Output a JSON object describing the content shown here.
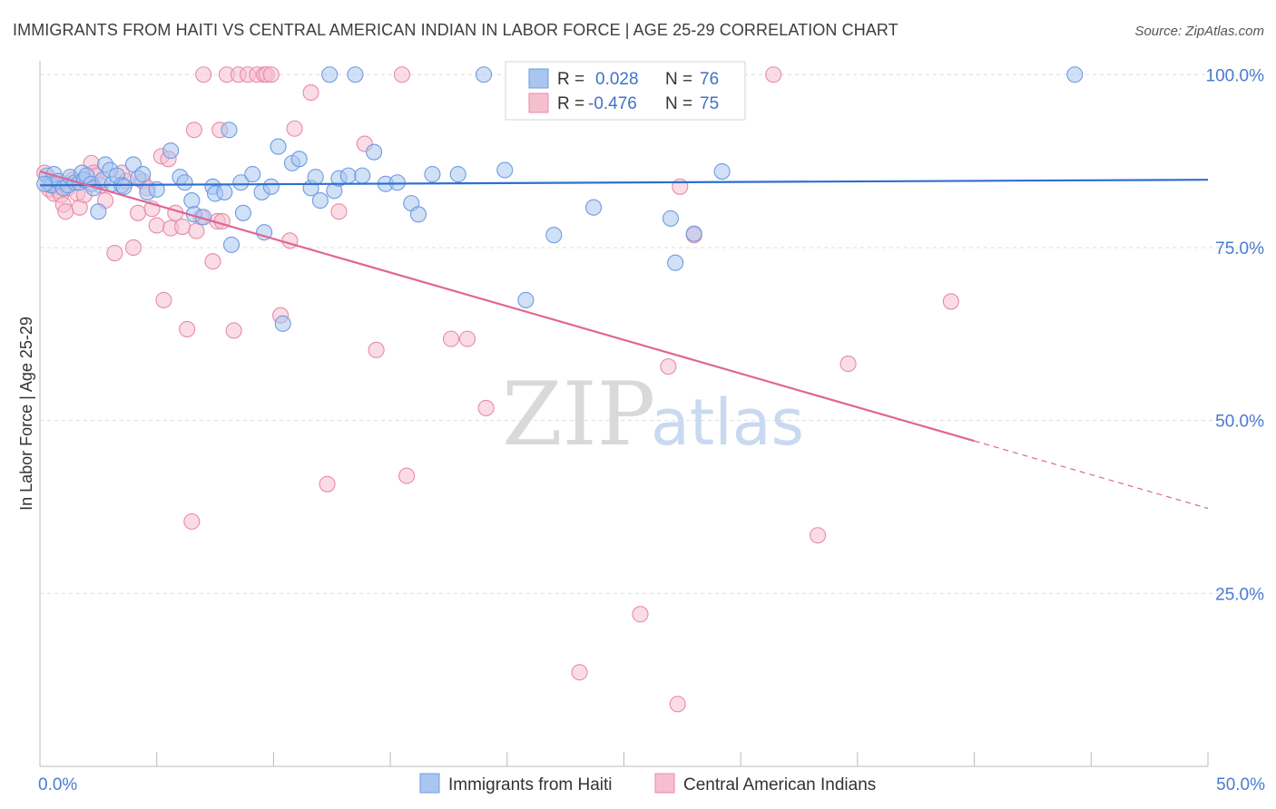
{
  "header": {
    "title": "IMMIGRANTS FROM HAITI VS CENTRAL AMERICAN INDIAN IN LABOR FORCE | AGE 25-29 CORRELATION CHART",
    "source": "Source: ZipAtlas.com"
  },
  "watermark": {
    "zip": "ZIP",
    "atlas": "atlas"
  },
  "stats": {
    "haiti": {
      "r_label": "R =",
      "r_value": "0.028",
      "n_label": "N =",
      "n_value": "76"
    },
    "cai": {
      "r_label": "R =",
      "r_value": "-0.476",
      "n_label": "N =",
      "n_value": "75"
    }
  },
  "legend": {
    "haiti": "Immigrants from Haiti",
    "cai": "Central American Indians"
  },
  "colors": {
    "haiti_fill": "#a9c6f0",
    "haiti_stroke": "#6f9be0",
    "haiti_line": "#2f6fcf",
    "cai_fill": "#f6bfd0",
    "cai_stroke": "#e98aa9",
    "cai_line": "#e06693",
    "grid": "#dddddd",
    "tick_label": "#4a7bd0"
  },
  "chart_data": {
    "type": "scatter",
    "title": "IMMIGRANTS FROM HAITI VS CENTRAL AMERICAN INDIAN IN LABOR FORCE | AGE 25-29 CORRELATION CHART",
    "xlabel": "",
    "ylabel": "In Labor Force | Age 25-29",
    "xlim": [
      0,
      50
    ],
    "ylim": [
      0,
      102
    ],
    "x_tick_labels": [
      "0.0%",
      "50.0%"
    ],
    "y_ticks": [
      25,
      50,
      75,
      100
    ],
    "y_tick_labels": [
      "25.0%",
      "50.0%",
      "75.0%",
      "100.0%"
    ],
    "grid": true,
    "legend_position": "bottom-center",
    "series": [
      {
        "name": "Immigrants from Haiti",
        "R": 0.028,
        "N": 76,
        "trend": {
          "x": [
            0,
            50
          ],
          "y": [
            84.0,
            84.8
          ],
          "dashed_from": null
        },
        "points": [
          [
            0.3,
            85.4
          ],
          [
            0.4,
            84.2
          ],
          [
            0.5,
            84.0
          ],
          [
            0.6,
            85.6
          ],
          [
            0.8,
            84.6
          ],
          [
            1.0,
            83.6
          ],
          [
            1.2,
            84.0
          ],
          [
            1.3,
            85.2
          ],
          [
            1.5,
            84.4
          ],
          [
            1.7,
            84.4
          ],
          [
            1.8,
            85.8
          ],
          [
            1.9,
            84.8
          ],
          [
            2.0,
            85.4
          ],
          [
            2.2,
            84.2
          ],
          [
            2.3,
            83.6
          ],
          [
            2.5,
            80.2
          ],
          [
            2.7,
            84.8
          ],
          [
            2.8,
            87.0
          ],
          [
            3.0,
            86.2
          ],
          [
            3.1,
            84.2
          ],
          [
            3.3,
            85.4
          ],
          [
            3.5,
            84.0
          ],
          [
            3.6,
            83.8
          ],
          [
            4.0,
            87.0
          ],
          [
            4.2,
            85.0
          ],
          [
            4.4,
            85.6
          ],
          [
            4.6,
            83.0
          ],
          [
            5.0,
            83.4
          ],
          [
            5.6,
            89.0
          ],
          [
            6.0,
            85.2
          ],
          [
            6.2,
            84.4
          ],
          [
            6.5,
            81.8
          ],
          [
            6.6,
            79.8
          ],
          [
            7.0,
            79.4
          ],
          [
            7.4,
            83.8
          ],
          [
            7.5,
            82.8
          ],
          [
            7.9,
            83.0
          ],
          [
            8.1,
            92.0
          ],
          [
            8.2,
            75.4
          ],
          [
            8.6,
            84.4
          ],
          [
            8.7,
            80.0
          ],
          [
            9.1,
            85.6
          ],
          [
            9.5,
            83.0
          ],
          [
            9.6,
            77.2
          ],
          [
            9.9,
            83.8
          ],
          [
            10.2,
            89.6
          ],
          [
            10.4,
            64.0
          ],
          [
            10.8,
            87.2
          ],
          [
            11.1,
            87.8
          ],
          [
            11.6,
            83.6
          ],
          [
            11.8,
            85.2
          ],
          [
            12.0,
            81.8
          ],
          [
            12.4,
            100.0
          ],
          [
            12.6,
            83.2
          ],
          [
            12.8,
            85.0
          ],
          [
            13.2,
            85.4
          ],
          [
            13.5,
            100.0
          ],
          [
            13.8,
            85.4
          ],
          [
            14.3,
            88.8
          ],
          [
            14.8,
            84.2
          ],
          [
            15.3,
            84.4
          ],
          [
            15.9,
            81.4
          ],
          [
            16.2,
            79.8
          ],
          [
            16.8,
            85.6
          ],
          [
            17.9,
            85.6
          ],
          [
            19.0,
            100.0
          ],
          [
            19.9,
            86.2
          ],
          [
            20.8,
            67.4
          ],
          [
            22.0,
            76.8
          ],
          [
            23.7,
            80.8
          ],
          [
            27.0,
            79.2
          ],
          [
            27.2,
            72.8
          ],
          [
            28.0,
            77.0
          ],
          [
            29.2,
            86.0
          ],
          [
            44.3,
            100.0
          ],
          [
            0.2,
            84.2
          ]
        ]
      },
      {
        "name": "Central American Indians",
        "R": -0.476,
        "N": 75,
        "trend": {
          "x": [
            0,
            50
          ],
          "y": [
            86.0,
            37.3
          ],
          "dashed_from": 40
        },
        "points": [
          [
            0.2,
            85.8
          ],
          [
            0.4,
            83.4
          ],
          [
            0.5,
            84.2
          ],
          [
            0.6,
            82.8
          ],
          [
            0.7,
            83.8
          ],
          [
            0.8,
            83.2
          ],
          [
            0.9,
            82.6
          ],
          [
            1.0,
            81.2
          ],
          [
            1.1,
            80.2
          ],
          [
            1.2,
            83.6
          ],
          [
            1.4,
            84.8
          ],
          [
            1.6,
            82.8
          ],
          [
            1.7,
            80.8
          ],
          [
            1.9,
            82.6
          ],
          [
            2.2,
            87.2
          ],
          [
            2.3,
            85.8
          ],
          [
            2.4,
            85.4
          ],
          [
            2.6,
            84.0
          ],
          [
            2.8,
            81.8
          ],
          [
            3.2,
            74.2
          ],
          [
            3.5,
            85.8
          ],
          [
            3.7,
            84.6
          ],
          [
            4.0,
            75.0
          ],
          [
            4.2,
            80.0
          ],
          [
            4.4,
            84.6
          ],
          [
            4.6,
            83.6
          ],
          [
            4.8,
            80.6
          ],
          [
            5.0,
            78.2
          ],
          [
            5.2,
            88.2
          ],
          [
            5.3,
            67.4
          ],
          [
            5.5,
            87.8
          ],
          [
            5.6,
            77.8
          ],
          [
            5.8,
            80.0
          ],
          [
            6.1,
            78.0
          ],
          [
            6.3,
            63.2
          ],
          [
            6.5,
            35.4
          ],
          [
            6.6,
            92.0
          ],
          [
            6.7,
            77.4
          ],
          [
            6.9,
            79.4
          ],
          [
            7.0,
            100.0
          ],
          [
            7.4,
            73.0
          ],
          [
            7.6,
            78.8
          ],
          [
            7.7,
            92.0
          ],
          [
            7.8,
            78.8
          ],
          [
            8.0,
            100.0
          ],
          [
            8.3,
            63.0
          ],
          [
            8.5,
            100.0
          ],
          [
            8.9,
            100.0
          ],
          [
            9.3,
            100.0
          ],
          [
            9.6,
            100.0
          ],
          [
            9.7,
            100.0
          ],
          [
            9.9,
            100.0
          ],
          [
            10.3,
            65.2
          ],
          [
            10.7,
            76.0
          ],
          [
            10.9,
            92.2
          ],
          [
            11.6,
            97.4
          ],
          [
            12.3,
            40.8
          ],
          [
            12.8,
            80.2
          ],
          [
            13.9,
            90.0
          ],
          [
            14.4,
            60.2
          ],
          [
            15.5,
            100.0
          ],
          [
            15.7,
            42.0
          ],
          [
            17.6,
            61.8
          ],
          [
            18.3,
            61.8
          ],
          [
            19.1,
            51.8
          ],
          [
            23.1,
            13.6
          ],
          [
            25.7,
            22.0
          ],
          [
            26.9,
            57.8
          ],
          [
            27.3,
            9.0
          ],
          [
            27.4,
            83.8
          ],
          [
            28.0,
            76.8
          ],
          [
            31.4,
            100.0
          ],
          [
            33.3,
            33.4
          ],
          [
            34.6,
            58.2
          ],
          [
            39.0,
            67.2
          ]
        ]
      }
    ]
  }
}
